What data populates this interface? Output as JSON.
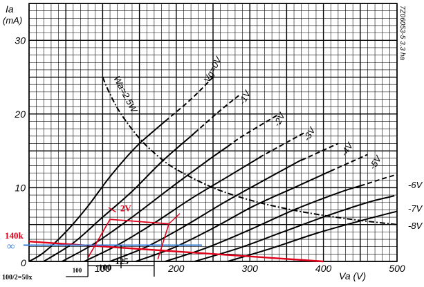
{
  "chart_data": {
    "type": "line",
    "xlabel": "Va (V)",
    "ylabel": "Ia",
    "ylabel_unit": "(mA)",
    "xlim": [
      0,
      500
    ],
    "ylim": [
      0,
      35
    ],
    "x_ticks": [
      0,
      100,
      200,
      300,
      400,
      500
    ],
    "y_ticks": [
      0,
      10,
      20,
      30
    ],
    "grid": true,
    "catalog_code": "7Z06053-5 3.3 ha",
    "series": [
      {
        "name": "Vg=0V",
        "points": [
          [
            0,
            0
          ],
          [
            20,
            1.2
          ],
          [
            50,
            4
          ],
          [
            80,
            7.5
          ],
          [
            110,
            11.5
          ],
          [
            145,
            15.5
          ],
          [
            180,
            18.6
          ],
          [
            220,
            22
          ],
          [
            250,
            25
          ]
        ],
        "dashed_from_x": 185
      },
      {
        "name": "-1V",
        "points": [
          [
            20,
            0
          ],
          [
            60,
            2.5
          ],
          [
            100,
            6
          ],
          [
            140,
            9.5
          ],
          [
            180,
            13.5
          ],
          [
            220,
            17
          ],
          [
            260,
            20.5
          ],
          [
            285,
            22.5
          ]
        ],
        "dashed_from_x": 225
      },
      {
        "name": "-2V",
        "points": [
          [
            45,
            0
          ],
          [
            90,
            2.5
          ],
          [
            140,
            6
          ],
          [
            190,
            9.8
          ],
          [
            240,
            13.5
          ],
          [
            290,
            17
          ],
          [
            340,
            20
          ]
        ],
        "dashed_from_x": 270
      },
      {
        "name": "-3V",
        "points": [
          [
            75,
            0
          ],
          [
            120,
            2.2
          ],
          [
            170,
            5.2
          ],
          [
            220,
            8.5
          ],
          [
            270,
            11.5
          ],
          [
            320,
            14.5
          ],
          [
            375,
            17.5
          ]
        ],
        "dashed_from_x": 315
      },
      {
        "name": "-4V",
        "points": [
          [
            110,
            0
          ],
          [
            160,
            2
          ],
          [
            210,
            4.7
          ],
          [
            260,
            7.7
          ],
          [
            310,
            10.5
          ],
          [
            365,
            13.5
          ],
          [
            420,
            16
          ]
        ],
        "dashed_from_x": 370
      },
      {
        "name": "-5V",
        "points": [
          [
            145,
            0
          ],
          [
            195,
            1.8
          ],
          [
            250,
            4.5
          ],
          [
            305,
            7.5
          ],
          [
            360,
            10
          ],
          [
            415,
            12.5
          ],
          [
            460,
            14.5
          ]
        ],
        "dashed_from_x": 410
      },
      {
        "name": "-6V",
        "points": [
          [
            185,
            0
          ],
          [
            240,
            1.8
          ],
          [
            300,
            4.3
          ],
          [
            360,
            7
          ],
          [
            420,
            9.3
          ],
          [
            480,
            11.2
          ],
          [
            500,
            11.8
          ]
        ],
        "dashed_from_x": 450
      },
      {
        "name": "-7V",
        "points": [
          [
            225,
            0
          ],
          [
            285,
            1.8
          ],
          [
            345,
            4
          ],
          [
            405,
            6.2
          ],
          [
            460,
            8
          ],
          [
            500,
            9
          ]
        ],
        "dashed_from_x": 490
      },
      {
        "name": "-8V",
        "points": [
          [
            270,
            0
          ],
          [
            330,
            1.8
          ],
          [
            390,
            3.8
          ],
          [
            450,
            5.5
          ],
          [
            500,
            6.8
          ]
        ],
        "dashed_from_x": 500
      }
    ],
    "dissipation_curve": {
      "name": "Wa=2.5W",
      "points": [
        [
          100,
          25
        ],
        [
          110,
          22.7
        ],
        [
          125,
          20
        ],
        [
          150,
          16.7
        ],
        [
          175,
          14.3
        ],
        [
          200,
          12.5
        ],
        [
          250,
          10
        ],
        [
          300,
          8.33
        ],
        [
          350,
          7.14
        ],
        [
          400,
          6.25
        ],
        [
          450,
          5.56
        ],
        [
          500,
          5
        ]
      ]
    },
    "annotations": {
      "load_line_label": "140k",
      "infinity_label": "∞",
      "grid_swing_label": "2V",
      "x_value_100": "100",
      "x_value_125": "125",
      "x_value_small_100": "100",
      "half_label": "100/2=50x",
      "load_line_red": [
        [
          0,
          2.7
        ],
        [
          400,
          0
        ]
      ],
      "blue_line": [
        [
          0,
          2.2
        ],
        [
          235,
          2.2
        ]
      ],
      "operating_point": [
        125,
        2.2
      ]
    },
    "colors": {
      "grid": "#000000",
      "curves": "#000000",
      "red": "#e0001a",
      "blue": "#3a7bd5"
    }
  }
}
